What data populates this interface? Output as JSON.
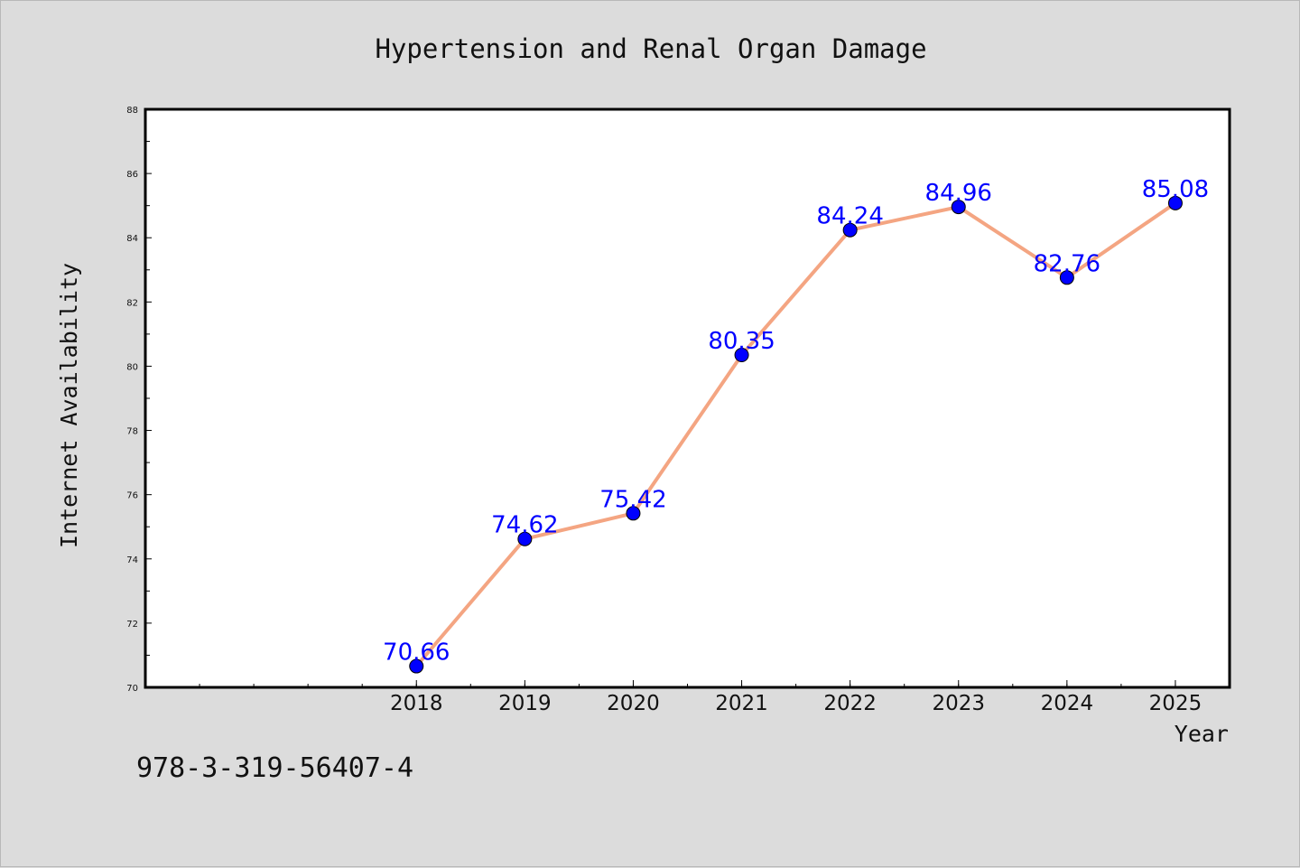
{
  "chart_data": {
    "type": "line",
    "title": "Hypertension and Renal Organ Damage",
    "xlabel": "Year",
    "ylabel": "Internet Availability",
    "categories": [
      "2018",
      "2019",
      "2020",
      "2021",
      "2022",
      "2023",
      "2024",
      "2025"
    ],
    "x": [
      2018,
      2019,
      2020,
      2021,
      2022,
      2023,
      2024,
      2025
    ],
    "values": [
      70.66,
      74.62,
      75.42,
      80.35,
      84.24,
      84.96,
      82.76,
      85.08
    ],
    "data_labels": [
      "70.66",
      "74.62",
      "75.42",
      "80.35",
      "84.24",
      "84.96",
      "82.76",
      "85.08"
    ],
    "xlim": [
      2015.5,
      2025.5
    ],
    "ylim": [
      70,
      88
    ],
    "yticks": [
      70,
      72,
      74,
      76,
      78,
      80,
      82,
      84,
      86,
      88
    ],
    "grid": false,
    "line_color": "#f4a582",
    "marker_color": "#0000ff",
    "label_color": "#0000ff"
  },
  "footnote": "978-3-319-56407-4"
}
